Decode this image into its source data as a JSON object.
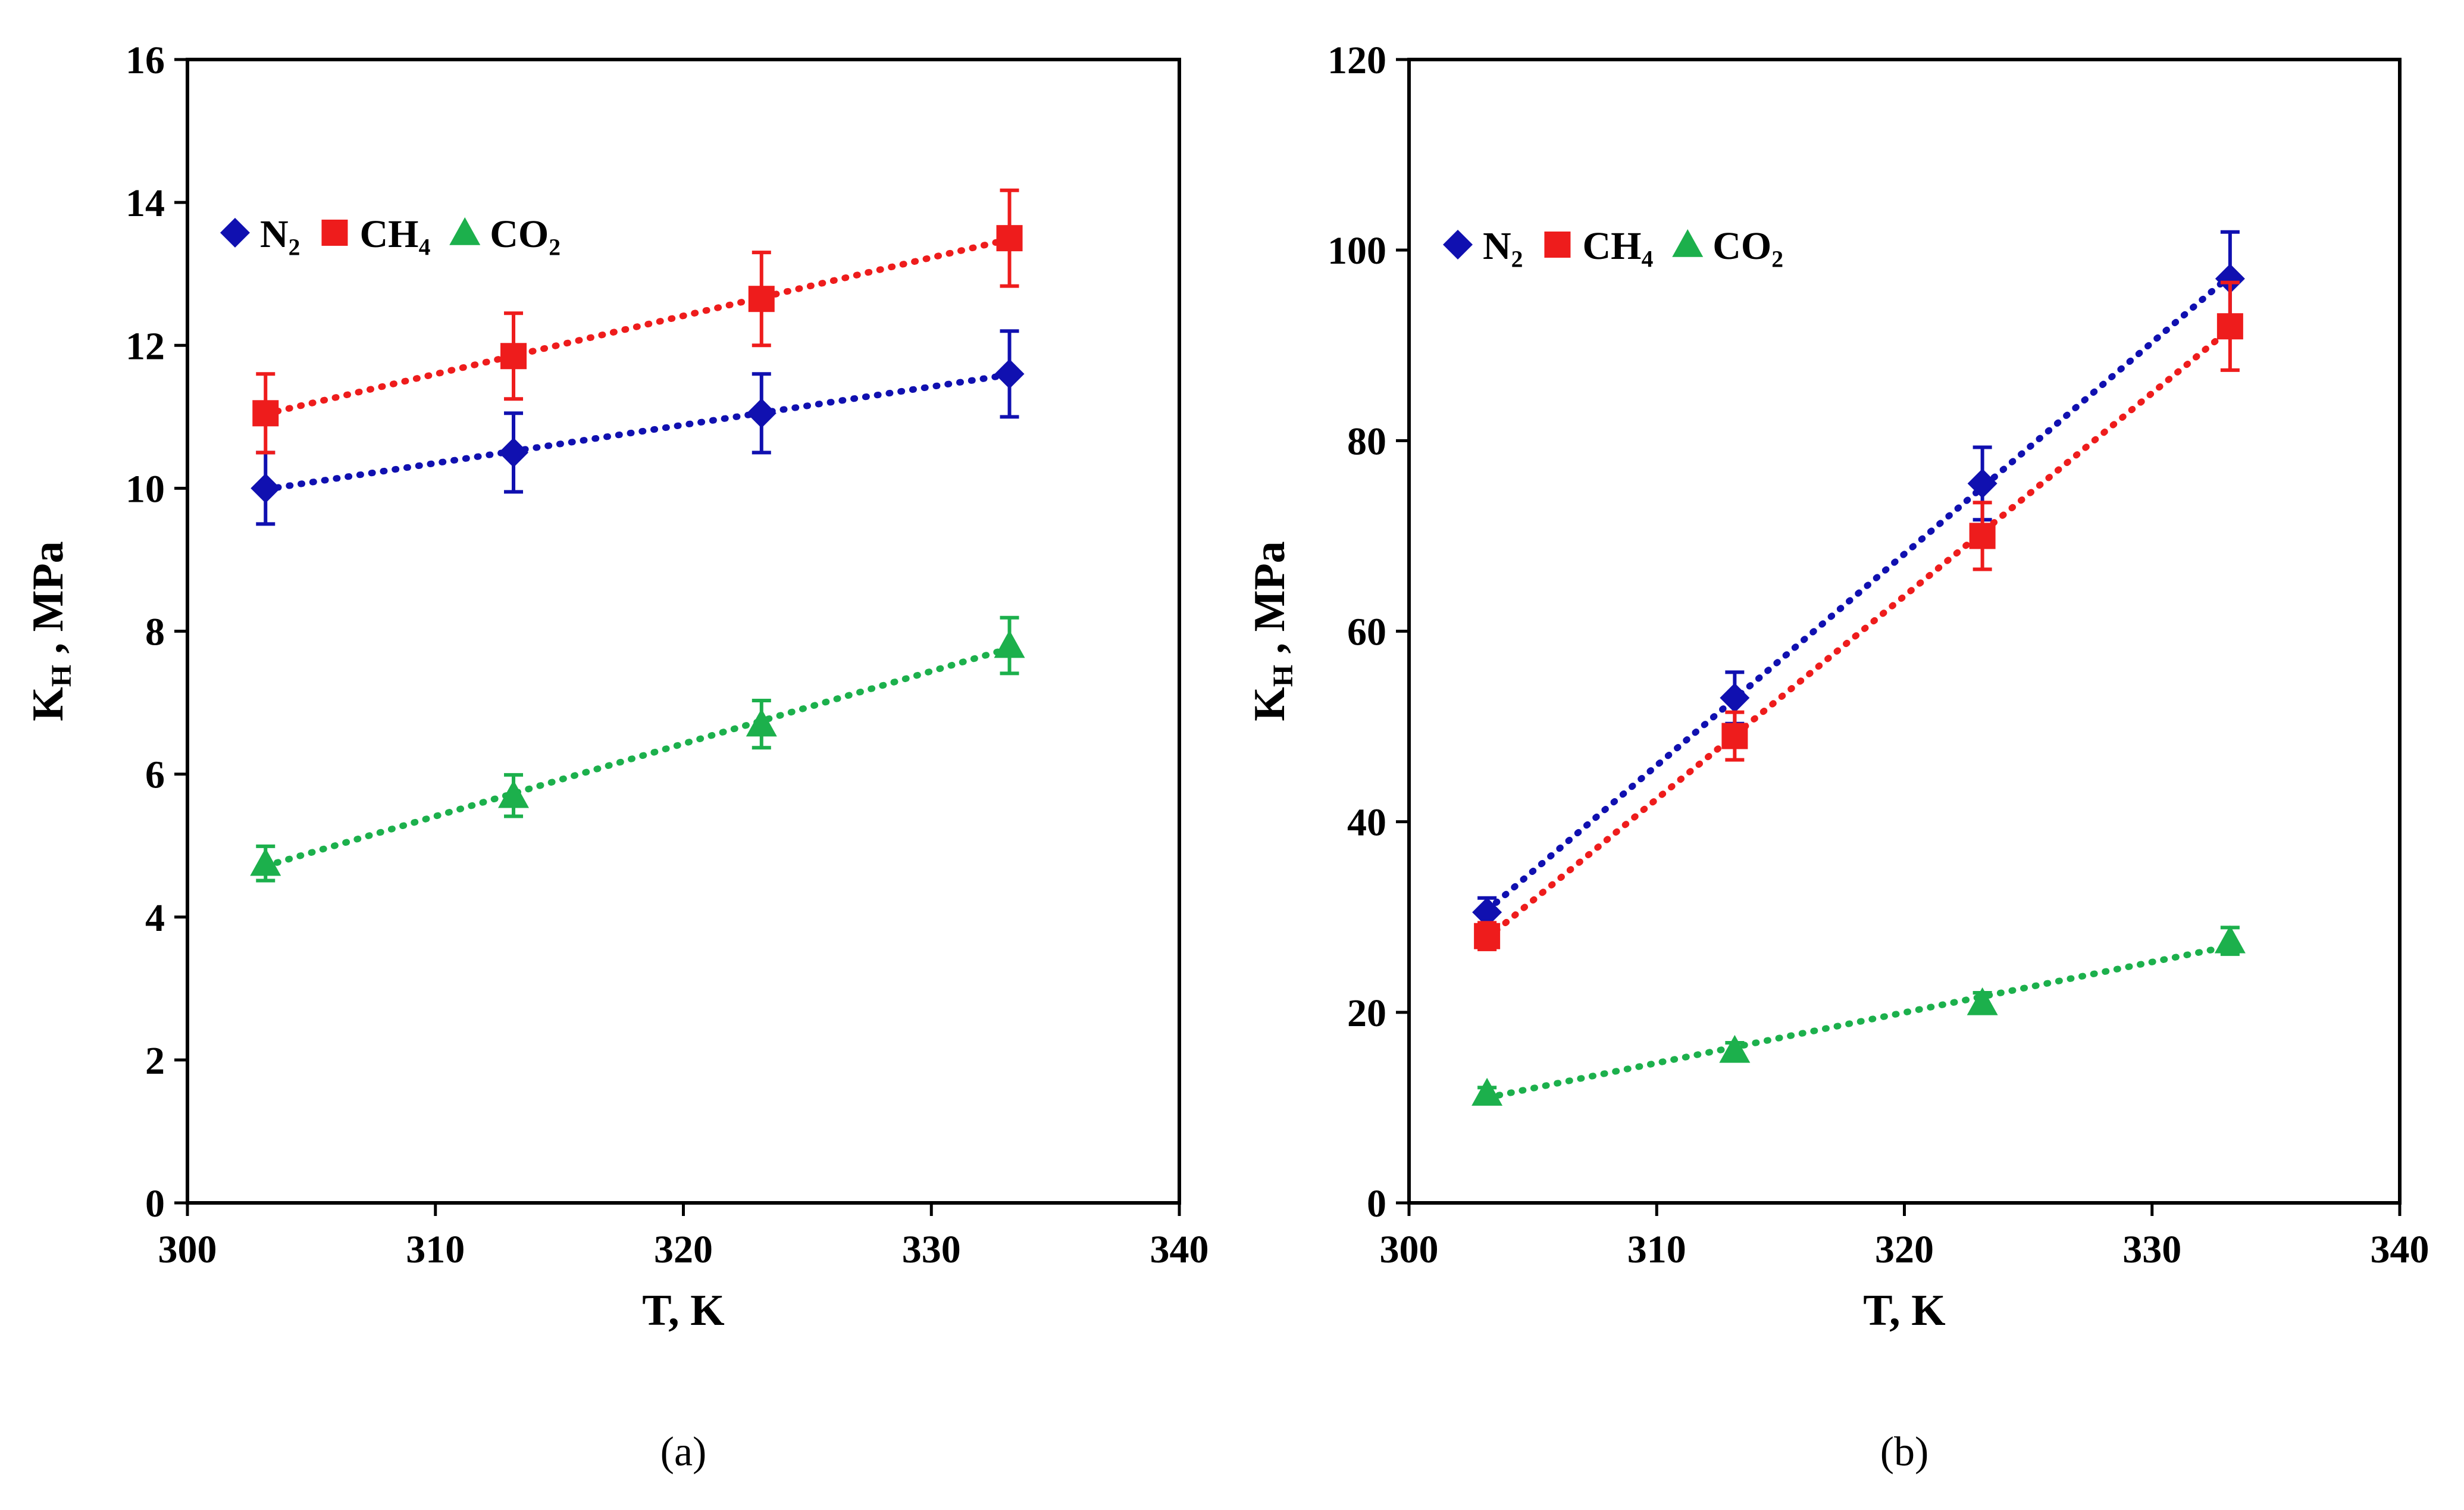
{
  "chart_data": [
    {
      "type": "scatter",
      "panel_label": "(a)",
      "xlabel": "T, K",
      "ylabel_main": "K",
      "ylabel_sub": "H",
      "ylabel_rest": " , MPa",
      "xlim": [
        300,
        340
      ],
      "ylim": [
        0,
        16
      ],
      "xticks": [
        "300",
        "310",
        "320",
        "330",
        "340"
      ],
      "yticks": [
        "0",
        "2",
        "4",
        "6",
        "8",
        "10",
        "12",
        "14",
        "16"
      ],
      "grid": false,
      "legend_position": "top-left",
      "series": [
        {
          "name": "N₂",
          "color": "#1010B0",
          "marker": "diamond",
          "x": [
            303.15,
            313.15,
            323.15,
            333.15
          ],
          "y": [
            10.0,
            10.5,
            11.05,
            11.6
          ],
          "err": [
            0.5,
            0.55,
            0.55,
            0.6
          ]
        },
        {
          "name": "CH₄",
          "color": "#EE1C1C",
          "marker": "square",
          "x": [
            303.15,
            313.15,
            323.15,
            333.15
          ],
          "y": [
            11.05,
            11.85,
            12.65,
            13.5
          ],
          "err": [
            0.55,
            0.6,
            0.65,
            0.67
          ]
        },
        {
          "name": "CO₂",
          "color": "#1CB04C",
          "marker": "triangle",
          "x": [
            303.15,
            313.15,
            323.15,
            333.15
          ],
          "y": [
            4.75,
            5.7,
            6.7,
            7.8
          ],
          "err": [
            0.24,
            0.29,
            0.33,
            0.39
          ]
        }
      ]
    },
    {
      "type": "scatter",
      "panel_label": "(b)",
      "xlabel": "T, K",
      "ylabel_main": "K",
      "ylabel_sub": "H",
      "ylabel_rest": " , MPa",
      "xlim": [
        300,
        340
      ],
      "ylim": [
        0,
        120
      ],
      "xticks": [
        "300",
        "310",
        "320",
        "330",
        "340"
      ],
      "yticks": [
        "0",
        "20",
        "40",
        "60",
        "80",
        "100",
        "120"
      ],
      "grid": false,
      "legend_position": "top-left",
      "series": [
        {
          "name": "N₂",
          "color": "#1010B0",
          "marker": "diamond",
          "x": [
            303.15,
            313.15,
            323.15,
            333.15
          ],
          "y": [
            30.5,
            53.0,
            75.5,
            97.0
          ],
          "err": [
            1.5,
            2.7,
            3.8,
            4.9
          ]
        },
        {
          "name": "CH₄",
          "color": "#EE1C1C",
          "marker": "square",
          "x": [
            303.15,
            313.15,
            323.15,
            333.15
          ],
          "y": [
            28.0,
            49.0,
            70.0,
            92.0
          ],
          "err": [
            1.4,
            2.5,
            3.5,
            4.6
          ]
        },
        {
          "name": "CO₂",
          "color": "#1CB04C",
          "marker": "triangle",
          "x": [
            303.15,
            313.15,
            323.15,
            333.15
          ],
          "y": [
            11.5,
            16.0,
            21.0,
            27.5
          ],
          "err": [
            0.6,
            0.8,
            1.05,
            1.4
          ]
        }
      ]
    }
  ]
}
